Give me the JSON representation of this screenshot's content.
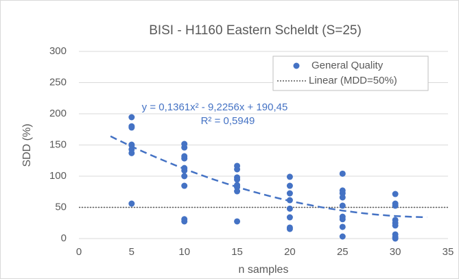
{
  "chart_data": {
    "type": "scatter",
    "title": "BISI - H1160 Eastern Scheldt (S=25)",
    "x_label": "n samples",
    "y_label": "SDD (%)",
    "xlim": [
      0,
      35
    ],
    "xticks": [
      0,
      5,
      10,
      15,
      20,
      25,
      30,
      35
    ],
    "ylim": [
      0,
      300
    ],
    "yticks": [
      0,
      50,
      100,
      150,
      200,
      250,
      300
    ],
    "grid": true,
    "legend": "top-right",
    "series": [
      {
        "name": "General Quality",
        "color": "#4472c4",
        "x": [
          5,
          5,
          5,
          5,
          5,
          5,
          5,
          5,
          10,
          10,
          10,
          10,
          10,
          10,
          10,
          10,
          10,
          10,
          15,
          15,
          15,
          15,
          15,
          15,
          15,
          15,
          20,
          20,
          20,
          20,
          20,
          20,
          20,
          20,
          25,
          25,
          25,
          25,
          25,
          25,
          25,
          25,
          25,
          30,
          30,
          30,
          30,
          30,
          30,
          30,
          30,
          30
        ],
        "values": [
          194.5,
          180,
          178,
          150.5,
          149.5,
          143,
          137,
          56,
          151.6,
          146,
          132,
          128.5,
          113,
          109,
          100,
          84.6,
          31,
          27.5,
          116.5,
          111,
          98,
          94.5,
          85.7,
          82.4,
          75.8,
          27.5,
          99,
          84.6,
          72.5,
          61.5,
          48,
          34,
          17.6,
          15.4,
          104,
          77,
          72.5,
          66,
          52.7,
          35,
          31,
          18.7,
          3.3,
          71.4,
          56,
          52.7,
          29.7,
          25,
          21,
          6.6,
          2.2,
          0
        ]
      }
    ],
    "reference_line": {
      "name": "Linear (MDD=50%)",
      "color": "#595959",
      "y": 50
    },
    "trendline": {
      "color": "#4472c4",
      "equation": "y = 0,1361x² - 9,2256x + 190,45",
      "r_squared": "R² = 0,5949",
      "coefficients": [
        0.1361,
        -9.2256,
        190.45
      ],
      "xrange": [
        3,
        33
      ]
    }
  }
}
